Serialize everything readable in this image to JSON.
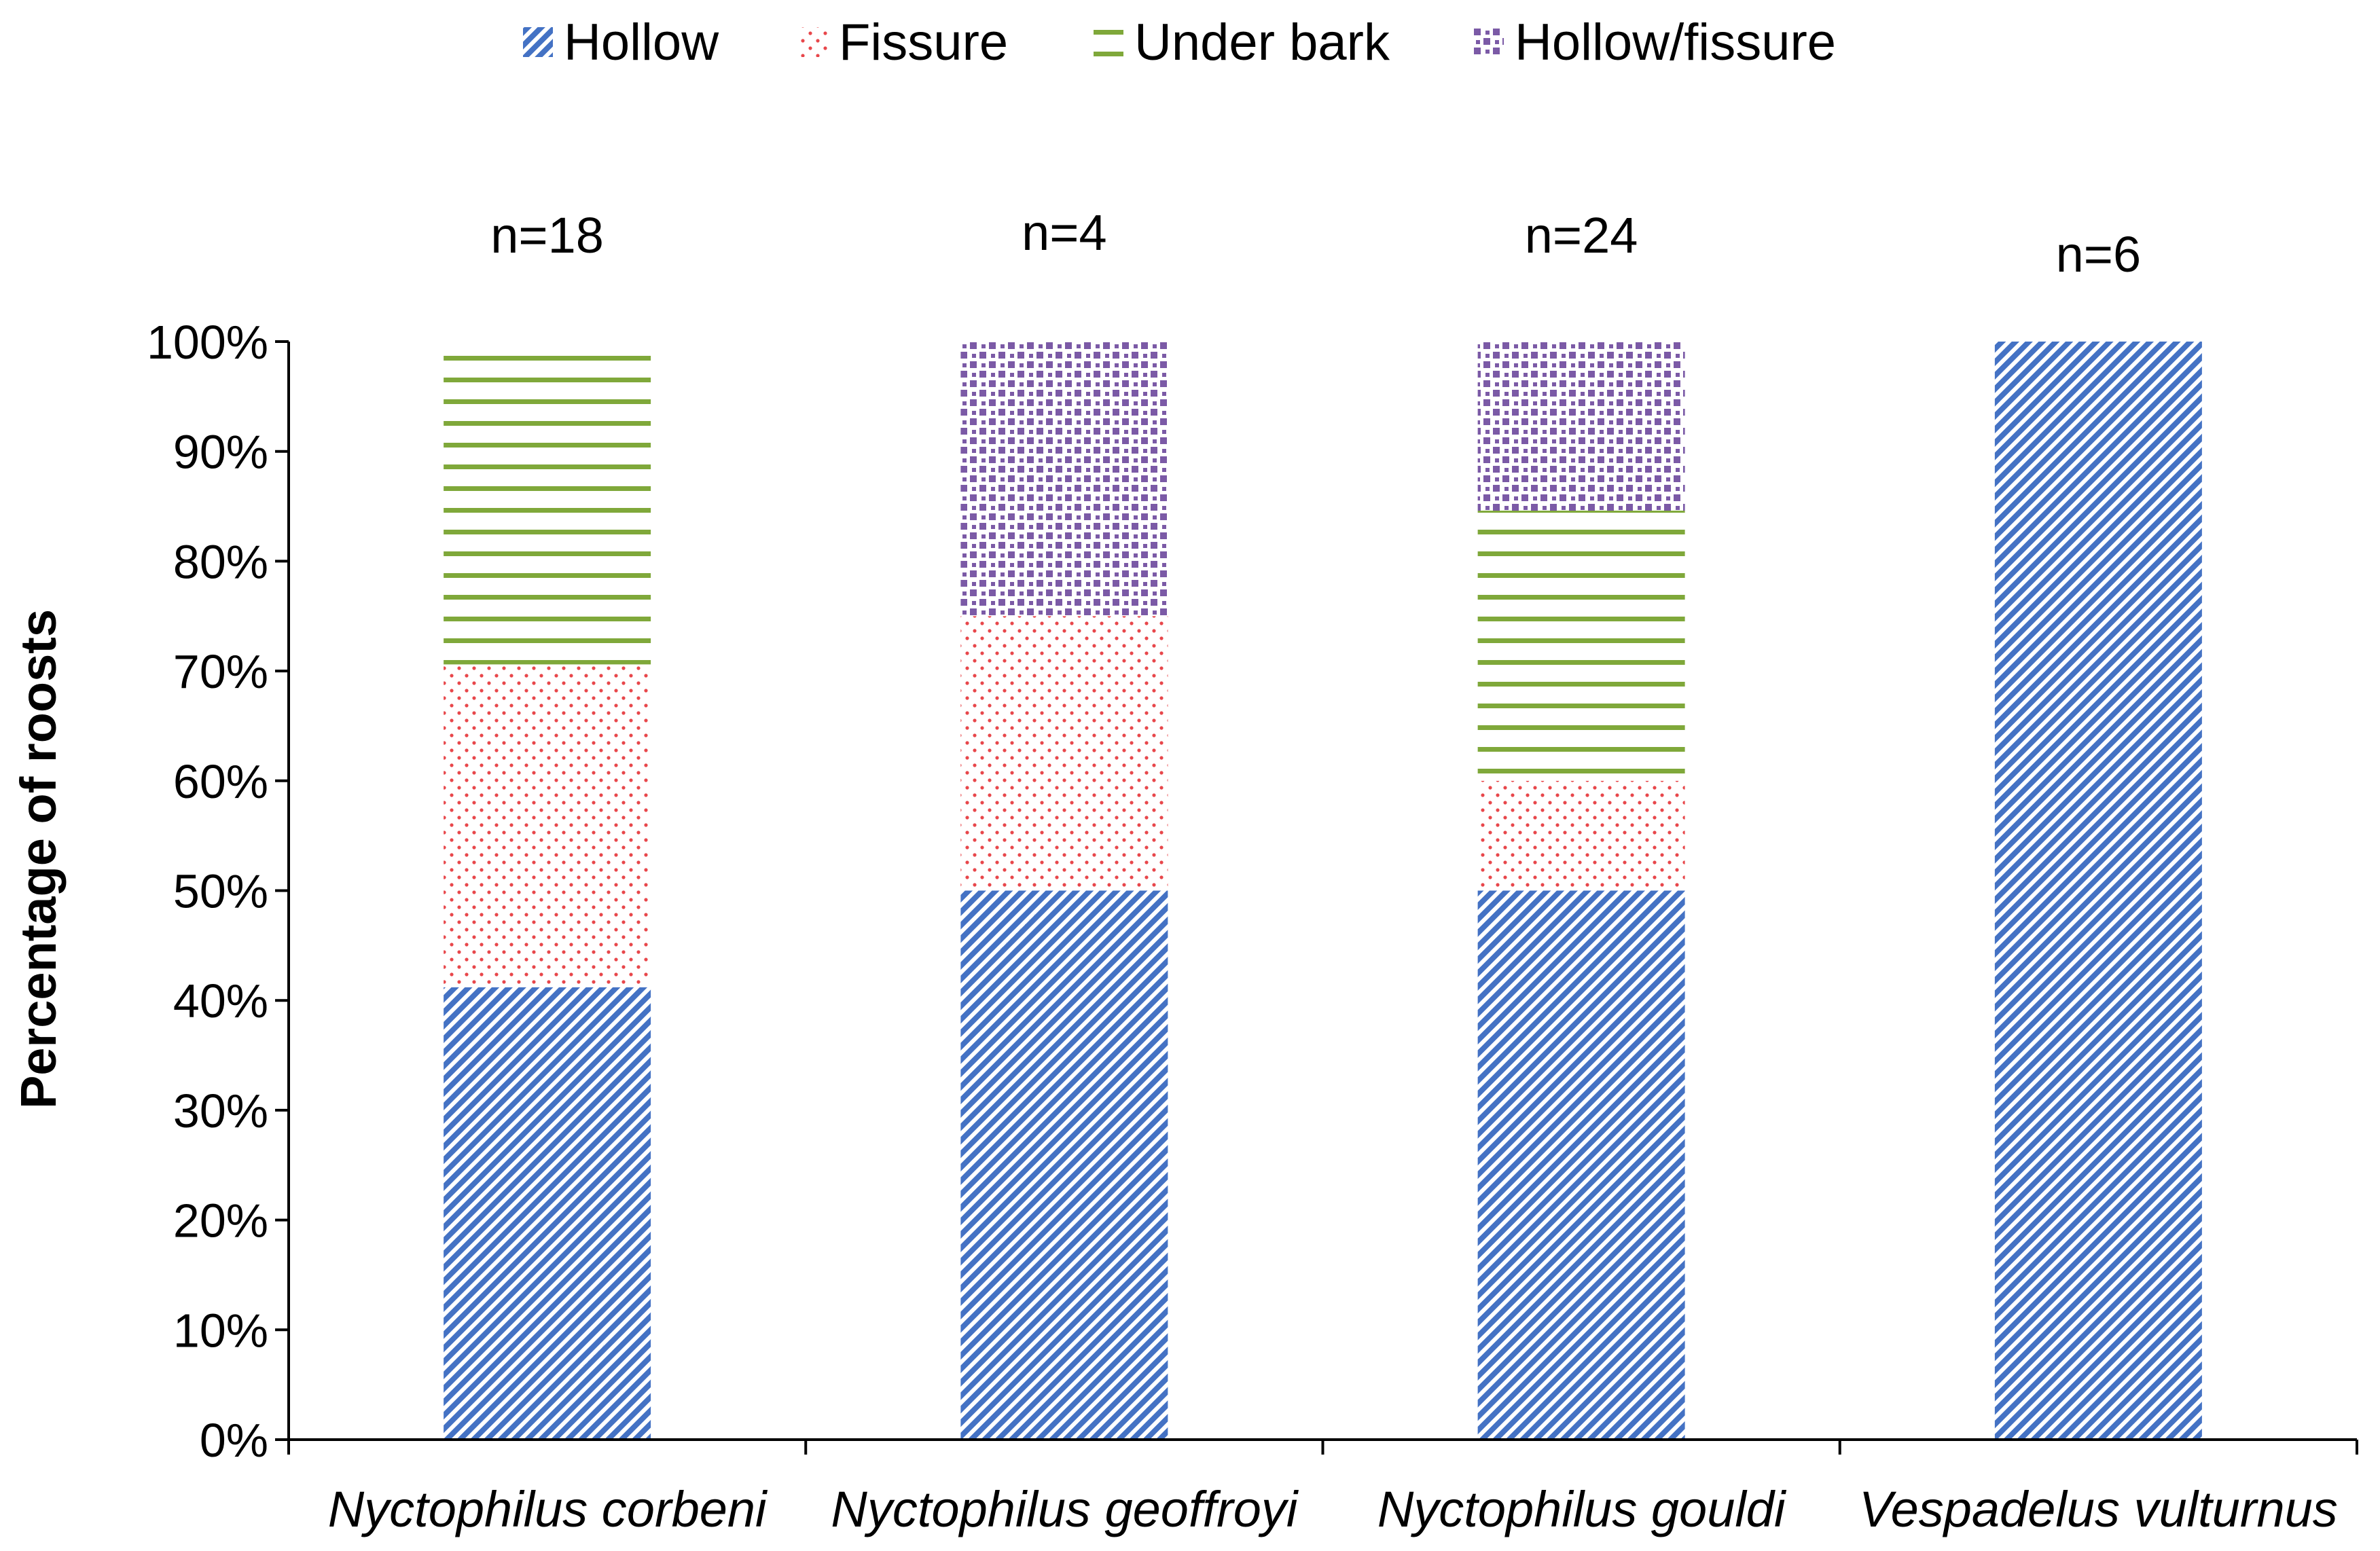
{
  "chart_data": {
    "type": "bar",
    "stacked": true,
    "categories": [
      "Nyctophilus corbeni",
      "Nyctophilus geoffroyi",
      "Nyctophilus gouldi",
      "Vespadelus vulturnus"
    ],
    "sample_sizes": [
      "n=18",
      "n=4",
      "n=24",
      "n=6"
    ],
    "series": [
      {
        "name": "Hollow",
        "values": [
          41.2,
          50,
          50,
          100
        ],
        "color": "#4472C4",
        "pattern": "diagonal-stripes"
      },
      {
        "name": "Fissure",
        "values": [
          29.4,
          25,
          10,
          0
        ],
        "color": "#E8474B",
        "pattern": "dots"
      },
      {
        "name": "Under bark",
        "values": [
          29.4,
          0,
          24.6,
          0
        ],
        "color": "#7FA83A",
        "pattern": "horizontal-lines"
      },
      {
        "name": "Hollow/fissure",
        "values": [
          0,
          25,
          15.4,
          0
        ],
        "color": "#7B5AA6",
        "pattern": "checker"
      }
    ],
    "title": "",
    "xlabel": "",
    "ylabel": "Percentage of roosts",
    "ylim": [
      0,
      100
    ],
    "yticks": [
      "0%",
      "10%",
      "20%",
      "30%",
      "40%",
      "50%",
      "60%",
      "70%",
      "80%",
      "90%",
      "100%"
    ],
    "grid": false,
    "legend_position": "top"
  }
}
